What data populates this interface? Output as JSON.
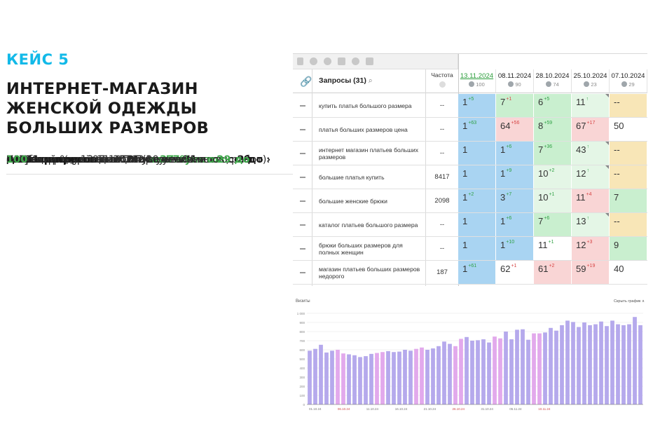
{
  "case": {
    "label": "КЕЙС 5"
  },
  "headline": [
    "ИНТЕРНЕТ-МАГАЗИН",
    "ЖЕНСКОЙ ОДЕЖДЫ",
    "БОЛЬШИХ РАЗМЕРОВ"
  ],
  "info": {
    "region_label": "Регион продвижения: ",
    "region_value": "Москва",
    "queries_label": "Кол-во приоритетных запросов: ",
    "queries_value": "31",
    "start": "Старт проекта: 07.10.2024",
    "result": "Результат на 13.11.2024 (спустя 1 месяц работ):",
    "item1_text": "1. Рост средней позиции на ",
    "item1_value": "37 пунктов",
    "item2_text": "2. Увеличение видимости ",
    "item2_value": "на 57%",
    "item3_text": "3. Кол-во запросов в ТОП-3 увеличилось ",
    "item3_value_a": "с 2 до",
    "item3_arrow": "›",
    "item3_value_b": "21 запросов",
    "item4_text": "4. Кол-во запросов в ТОП-10 увеличилось ",
    "item4_value_a": "с 9",
    "item4_value_b": "до 31 запросов",
    "item5_text": "5. Общий % успешности увеличился ",
    "item5_value_a": "с 29 до",
    "item5_value_b": "100"
  },
  "table": {
    "header_link_icon": "link-icon",
    "query_col": "Запросы (31)",
    "search_icon": "search-icon",
    "freq_col": "Частота",
    "dates": [
      {
        "date": "13.11.2024",
        "vis": "100"
      },
      {
        "date": "08.11.2024",
        "vis": "90"
      },
      {
        "date": "28.10.2024",
        "vis": "74"
      },
      {
        "date": "25.10.2024",
        "vis": "23"
      },
      {
        "date": "07.10.2024",
        "vis": "29"
      }
    ],
    "colors": {
      "blue": "#a9d4f2",
      "green": "#c9efcf",
      "lightgreen": "#e4f6e6",
      "red": "#f9d5d5",
      "yellow": "#f8e6b7",
      "white": "#ffffff"
    },
    "rows": [
      {
        "dash": "–",
        "query": "купить платья большого размера",
        "freq": "--",
        "cells": [
          {
            "v": "1",
            "d": "+5",
            "t": "up",
            "c": "blue"
          },
          {
            "v": "7",
            "d": "+1",
            "t": "dn",
            "c": "green"
          },
          {
            "v": "6",
            "d": "+5",
            "t": "up",
            "c": "green"
          },
          {
            "v": "11",
            "d": "↑",
            "t": "up",
            "c": "lightgreen",
            "k": true
          },
          {
            "v": "--",
            "d": "",
            "t": "",
            "c": "yellow"
          }
        ]
      },
      {
        "dash": "–",
        "query": "платья больших размеров цена",
        "freq": "--",
        "cells": [
          {
            "v": "1",
            "d": "+63",
            "t": "up",
            "c": "blue"
          },
          {
            "v": "64",
            "d": "+56",
            "t": "dn",
            "c": "red"
          },
          {
            "v": "8",
            "d": "+59",
            "t": "up",
            "c": "green"
          },
          {
            "v": "67",
            "d": "+17",
            "t": "dn",
            "c": "red"
          },
          {
            "v": "50",
            "d": "",
            "t": "",
            "c": "white"
          }
        ]
      },
      {
        "dash": "–",
        "query": "интернет магазин платьев больших размеров",
        "freq": "--",
        "cells": [
          {
            "v": "1",
            "d": "",
            "t": "",
            "c": "blue"
          },
          {
            "v": "1",
            "d": "+6",
            "t": "up",
            "c": "blue"
          },
          {
            "v": "7",
            "d": "+36",
            "t": "up",
            "c": "green"
          },
          {
            "v": "43",
            "d": "↑",
            "t": "up",
            "c": "lightgreen",
            "k": true
          },
          {
            "v": "--",
            "d": "",
            "t": "",
            "c": "yellow"
          }
        ]
      },
      {
        "dash": "–",
        "query": "большие платья купить",
        "freq": "8417",
        "cells": [
          {
            "v": "1",
            "d": "",
            "t": "",
            "c": "blue"
          },
          {
            "v": "1",
            "d": "+9",
            "t": "up",
            "c": "blue"
          },
          {
            "v": "10",
            "d": "+2",
            "t": "up",
            "c": "lightgreen"
          },
          {
            "v": "12",
            "d": "↑",
            "t": "up",
            "c": "lightgreen",
            "k": true
          },
          {
            "v": "--",
            "d": "",
            "t": "",
            "c": "yellow"
          }
        ]
      },
      {
        "dash": "–",
        "query": "большие женские брюки",
        "freq": "2098",
        "cells": [
          {
            "v": "1",
            "d": "+2",
            "t": "up",
            "c": "blue"
          },
          {
            "v": "3",
            "d": "+7",
            "t": "up",
            "c": "blue"
          },
          {
            "v": "10",
            "d": "+1",
            "t": "up",
            "c": "lightgreen"
          },
          {
            "v": "11",
            "d": "+4",
            "t": "dn",
            "c": "red"
          },
          {
            "v": "7",
            "d": "",
            "t": "",
            "c": "green"
          }
        ]
      },
      {
        "dash": "–",
        "query": "каталог платьев большого размера",
        "freq": "--",
        "cells": [
          {
            "v": "1",
            "d": "",
            "t": "",
            "c": "blue"
          },
          {
            "v": "1",
            "d": "+6",
            "t": "up",
            "c": "blue"
          },
          {
            "v": "7",
            "d": "+6",
            "t": "up",
            "c": "green"
          },
          {
            "v": "13",
            "d": "↑",
            "t": "up",
            "c": "lightgreen",
            "k": true
          },
          {
            "v": "--",
            "d": "",
            "t": "",
            "c": "yellow"
          }
        ]
      },
      {
        "dash": "–",
        "query": "брюки больших размеров для полных женщин",
        "freq": "--",
        "cells": [
          {
            "v": "1",
            "d": "",
            "t": "",
            "c": "blue"
          },
          {
            "v": "1",
            "d": "+10",
            "t": "up",
            "c": "blue"
          },
          {
            "v": "11",
            "d": "+1",
            "t": "up",
            "c": "white"
          },
          {
            "v": "12",
            "d": "+3",
            "t": "dn",
            "c": "red"
          },
          {
            "v": "9",
            "d": "",
            "t": "",
            "c": "green"
          }
        ]
      },
      {
        "dash": "–",
        "query": "магазин платьев больших размеров недорого",
        "freq": "187",
        "cells": [
          {
            "v": "1",
            "d": "+61",
            "t": "up",
            "c": "blue"
          },
          {
            "v": "62",
            "d": "+1",
            "t": "dn",
            "c": "white"
          },
          {
            "v": "61",
            "d": "+2",
            "t": "dn",
            "c": "red"
          },
          {
            "v": "59",
            "d": "+19",
            "t": "dn",
            "c": "red"
          },
          {
            "v": "40",
            "d": "",
            "t": "",
            "c": "white"
          }
        ]
      }
    ]
  },
  "bar_chart": {
    "title": "Визиты",
    "dropdown": "Скрыть график ∧",
    "ytick_labels": [
      "1 000",
      "900",
      "800",
      "700",
      "600",
      "500",
      "400",
      "300",
      "200",
      "100",
      "0"
    ],
    "xtick_labels": [
      "01.10.24",
      "06.10.24",
      "11.10.24",
      "16.10.24",
      "21.10.24",
      "26.10.24",
      "31.10.24",
      "05.11.24",
      "10.11.24"
    ],
    "xtick_red": [
      false,
      true,
      false,
      false,
      false,
      true,
      false,
      false,
      true
    ],
    "colors": {
      "weekday": "#b5a9ec",
      "weekend": "#e2a9ec",
      "grid": "#e6e6e6",
      "axis": "#666666",
      "red_tick": "#cf4a4a"
    },
    "weekend_idx": [
      5,
      6,
      12,
      13,
      19,
      20,
      26,
      27,
      33,
      34,
      40,
      41
    ],
    "values": [
      590,
      610,
      655,
      570,
      590,
      600,
      560,
      550,
      540,
      520,
      530,
      555,
      565,
      575,
      585,
      575,
      580,
      600,
      590,
      610,
      625,
      600,
      615,
      640,
      690,
      665,
      640,
      720,
      740,
      700,
      705,
      715,
      680,
      745,
      725,
      800,
      715,
      820,
      825,
      710,
      780,
      780,
      790,
      840,
      810,
      870,
      920,
      905,
      850,
      900,
      870,
      880,
      910,
      860,
      920,
      880,
      870,
      880,
      960,
      870
    ]
  }
}
